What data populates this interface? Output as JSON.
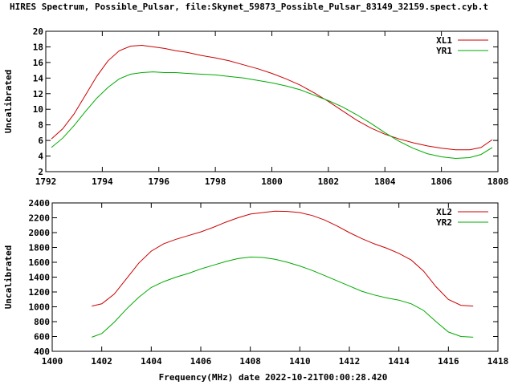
{
  "title": "HIRES Spectrum, Possible_Pulsar, file:Skynet_59873_Possible_Pulsar_83149_32159.spect.cyb.t",
  "chart_data": [
    {
      "type": "line",
      "xlabel": "",
      "ylabel": "Uncalibrated",
      "xlim": [
        1792,
        1808
      ],
      "ylim": [
        2,
        20
      ],
      "xticks": [
        1792,
        1794,
        1796,
        1798,
        1800,
        1802,
        1804,
        1806,
        1808
      ],
      "yticks": [
        2,
        4,
        6,
        8,
        10,
        12,
        14,
        16,
        18,
        20
      ],
      "legend_position": "top-right",
      "grid": false,
      "series": [
        {
          "name": "XL1",
          "color": "#cc0000",
          "x": [
            1792.2,
            1792.6,
            1793.0,
            1793.4,
            1793.8,
            1794.2,
            1794.6,
            1795.0,
            1795.4,
            1795.8,
            1796.2,
            1796.6,
            1797.0,
            1797.5,
            1798.0,
            1798.5,
            1799.0,
            1799.5,
            1800.0,
            1800.5,
            1801.0,
            1801.5,
            1802.0,
            1802.5,
            1803.0,
            1803.5,
            1804.0,
            1804.5,
            1805.0,
            1805.5,
            1806.0,
            1806.5,
            1807.0,
            1807.4,
            1807.8
          ],
          "y": [
            6.2,
            7.5,
            9.4,
            11.8,
            14.2,
            16.2,
            17.5,
            18.1,
            18.2,
            18.0,
            17.8,
            17.5,
            17.3,
            16.9,
            16.6,
            16.2,
            15.7,
            15.2,
            14.6,
            13.9,
            13.1,
            12.1,
            11.0,
            9.8,
            8.6,
            7.6,
            6.8,
            6.2,
            5.7,
            5.3,
            5.0,
            4.8,
            4.8,
            5.1,
            6.1
          ]
        },
        {
          "name": "YR1",
          "color": "#00aa00",
          "x": [
            1792.2,
            1792.6,
            1793.0,
            1793.4,
            1793.8,
            1794.2,
            1794.6,
            1795.0,
            1795.4,
            1795.8,
            1796.2,
            1796.6,
            1797.0,
            1797.5,
            1798.0,
            1798.5,
            1799.0,
            1799.5,
            1800.0,
            1800.5,
            1801.0,
            1801.5,
            1802.0,
            1802.5,
            1803.0,
            1803.5,
            1804.0,
            1804.5,
            1805.0,
            1805.5,
            1806.0,
            1806.5,
            1807.0,
            1807.4,
            1807.8
          ],
          "y": [
            5.1,
            6.3,
            7.9,
            9.7,
            11.4,
            12.8,
            13.9,
            14.5,
            14.7,
            14.8,
            14.7,
            14.7,
            14.6,
            14.5,
            14.4,
            14.2,
            14.0,
            13.7,
            13.4,
            13.0,
            12.5,
            11.8,
            11.1,
            10.3,
            9.3,
            8.2,
            7.0,
            5.9,
            5.0,
            4.3,
            3.9,
            3.7,
            3.8,
            4.2,
            5.1
          ]
        }
      ]
    },
    {
      "type": "line",
      "xlabel": "Frequency(MHz) date 2022-10-21T00:00:28.420",
      "ylabel": "Uncalibrated",
      "xlim": [
        1400,
        1418
      ],
      "ylim": [
        400,
        2400
      ],
      "xticks": [
        1400,
        1402,
        1404,
        1406,
        1408,
        1410,
        1412,
        1414,
        1416,
        1418
      ],
      "yticks": [
        400,
        600,
        800,
        1000,
        1200,
        1400,
        1600,
        1800,
        2000,
        2200,
        2400
      ],
      "legend_position": "top-right",
      "grid": false,
      "series": [
        {
          "name": "XL2",
          "color": "#cc0000",
          "x": [
            1401.6,
            1402.0,
            1402.5,
            1403.0,
            1403.5,
            1404.0,
            1404.5,
            1405.0,
            1405.5,
            1406.0,
            1406.5,
            1407.0,
            1407.5,
            1408.0,
            1408.5,
            1409.0,
            1409.5,
            1410.0,
            1410.5,
            1411.0,
            1411.5,
            1412.0,
            1412.5,
            1413.0,
            1413.5,
            1414.0,
            1414.5,
            1415.0,
            1415.5,
            1416.0,
            1416.5,
            1417.0
          ],
          "y": [
            1010,
            1040,
            1170,
            1380,
            1590,
            1750,
            1850,
            1910,
            1960,
            2010,
            2070,
            2140,
            2200,
            2250,
            2270,
            2290,
            2285,
            2270,
            2230,
            2170,
            2090,
            2000,
            1920,
            1850,
            1790,
            1720,
            1630,
            1480,
            1270,
            1100,
            1020,
            1010
          ]
        },
        {
          "name": "YR2",
          "color": "#00aa00",
          "x": [
            1401.6,
            1402.0,
            1402.5,
            1403.0,
            1403.5,
            1404.0,
            1404.5,
            1405.0,
            1405.5,
            1406.0,
            1406.5,
            1407.0,
            1407.5,
            1408.0,
            1408.5,
            1409.0,
            1409.5,
            1410.0,
            1410.5,
            1411.0,
            1411.5,
            1412.0,
            1412.5,
            1413.0,
            1413.5,
            1414.0,
            1414.5,
            1415.0,
            1415.5,
            1416.0,
            1416.5,
            1417.0
          ],
          "y": [
            590,
            640,
            790,
            970,
            1130,
            1260,
            1340,
            1400,
            1450,
            1510,
            1560,
            1610,
            1650,
            1670,
            1665,
            1640,
            1600,
            1550,
            1490,
            1420,
            1350,
            1280,
            1210,
            1160,
            1120,
            1090,
            1040,
            950,
            800,
            660,
            600,
            590
          ]
        }
      ]
    }
  ]
}
